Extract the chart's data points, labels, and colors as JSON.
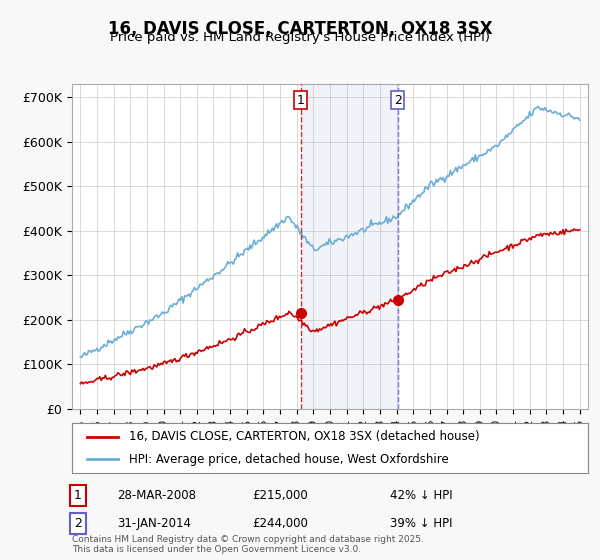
{
  "title": "16, DAVIS CLOSE, CARTERTON, OX18 3SX",
  "subtitle": "Price paid vs. HM Land Registry's House Price Index (HPI)",
  "ylabel": "",
  "ylim": [
    0,
    730000
  ],
  "yticks": [
    0,
    100000,
    200000,
    300000,
    400000,
    500000,
    600000,
    700000
  ],
  "ytick_labels": [
    "£0",
    "£100K",
    "£200K",
    "£300K",
    "£400K",
    "£500K",
    "£600K",
    "£700K"
  ],
  "hpi_color": "#6aaed6",
  "price_color": "#cc0000",
  "vline1_color": "#cc0000",
  "vline2_color": "#6060cc",
  "annotation1": {
    "x": 2008.23,
    "label": "1",
    "date": "28-MAR-2008",
    "price": "£215,000",
    "pct": "42% ↓ HPI"
  },
  "annotation2": {
    "x": 2014.08,
    "label": "2",
    "date": "31-JAN-2014",
    "price": "£244,000",
    "pct": "39% ↓ HPI"
  },
  "legend_line1": "16, DAVIS CLOSE, CARTERTON, OX18 3SX (detached house)",
  "legend_line2": "HPI: Average price, detached house, West Oxfordshire",
  "footer": "Contains HM Land Registry data © Crown copyright and database right 2025.\nThis data is licensed under the Open Government Licence v3.0.",
  "background_color": "#f0f4fa",
  "plot_bg_color": "#ffffff",
  "grid_color": "#cccccc"
}
